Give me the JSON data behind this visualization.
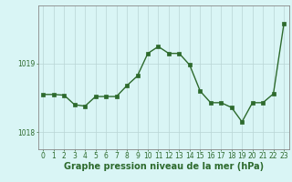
{
  "x": [
    0,
    1,
    2,
    3,
    4,
    5,
    6,
    7,
    8,
    9,
    10,
    11,
    12,
    13,
    14,
    15,
    16,
    17,
    18,
    19,
    20,
    21,
    22,
    23
  ],
  "y": [
    1018.55,
    1018.55,
    1018.54,
    1018.4,
    1018.38,
    1018.52,
    1018.52,
    1018.52,
    1018.68,
    1018.82,
    1019.15,
    1019.25,
    1019.15,
    1019.15,
    1018.98,
    1018.6,
    1018.43,
    1018.43,
    1018.36,
    1018.15,
    1018.43,
    1018.43,
    1018.56,
    1019.58
  ],
  "line_color": "#2d6a2d",
  "marker": "s",
  "marker_size": 2.5,
  "bg_color": "#d9f5f5",
  "grid_color": "#b8d4d4",
  "xlabel": "Graphe pression niveau de la mer (hPa)",
  "xlabel_color": "#2d6a2d",
  "xlabel_fontsize": 7,
  "tick_color": "#2d6a2d",
  "tick_fontsize": 5.5,
  "ytick_labels": [
    "1018",
    "1019"
  ],
  "ytick_values": [
    1018,
    1019
  ],
  "ylim": [
    1017.75,
    1019.85
  ],
  "xlim": [
    -0.5,
    23.5
  ],
  "axis_color": "#888888",
  "linewidth": 1.0
}
